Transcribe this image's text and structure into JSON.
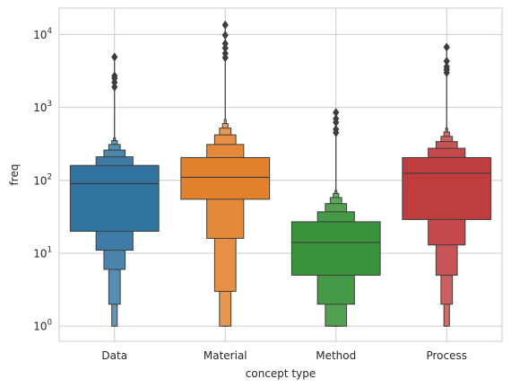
{
  "chart_data": {
    "type": "boxen",
    "xlabel": "concept type",
    "ylabel": "freq",
    "yscale": "log",
    "ylim": [
      0.62,
      23000
    ],
    "grid": true,
    "categories": [
      "Data",
      "Material",
      "Method",
      "Process"
    ],
    "colors": [
      "#3274a1",
      "#e1812c",
      "#3a923a",
      "#c03d3e"
    ],
    "y_ticks": [
      {
        "value": 1,
        "base": "10",
        "exp": "0"
      },
      {
        "value": 10,
        "base": "10",
        "exp": "1"
      },
      {
        "value": 100,
        "base": "10",
        "exp": "2"
      },
      {
        "value": 1000,
        "base": "10",
        "exp": "3"
      },
      {
        "value": 10000,
        "base": "10",
        "exp": "4"
      }
    ],
    "series": [
      {
        "name": "Data",
        "median": 90,
        "boxes": [
          [
            20,
            160
          ],
          [
            11,
            210
          ],
          [
            6,
            260
          ],
          [
            2,
            310
          ],
          [
            1,
            350
          ],
          [
            1,
            380
          ]
        ],
        "outliers": [
          1900,
          2200,
          2500,
          2700,
          4900
        ]
      },
      {
        "name": "Material",
        "median": 110,
        "boxes": [
          [
            55,
            205
          ],
          [
            16,
            310
          ],
          [
            3,
            420
          ],
          [
            1,
            520
          ],
          [
            1,
            600
          ],
          [
            1,
            680
          ]
        ],
        "outliers": [
          4800,
          5500,
          6500,
          7500,
          9800,
          13500
        ]
      },
      {
        "name": "Method",
        "median": 14,
        "boxes": [
          [
            5,
            27
          ],
          [
            2,
            37
          ],
          [
            1,
            48
          ],
          [
            1,
            58
          ],
          [
            1,
            66
          ],
          [
            1,
            72
          ]
        ],
        "outliers": [
          450,
          500,
          620,
          700,
          850
        ]
      },
      {
        "name": "Process",
        "median": 125,
        "boxes": [
          [
            29,
            205
          ],
          [
            13,
            275
          ],
          [
            5,
            340
          ],
          [
            2,
            400
          ],
          [
            1,
            460
          ],
          [
            1,
            520
          ]
        ],
        "outliers": [
          3000,
          3300,
          3600,
          4300,
          6700
        ]
      }
    ]
  }
}
